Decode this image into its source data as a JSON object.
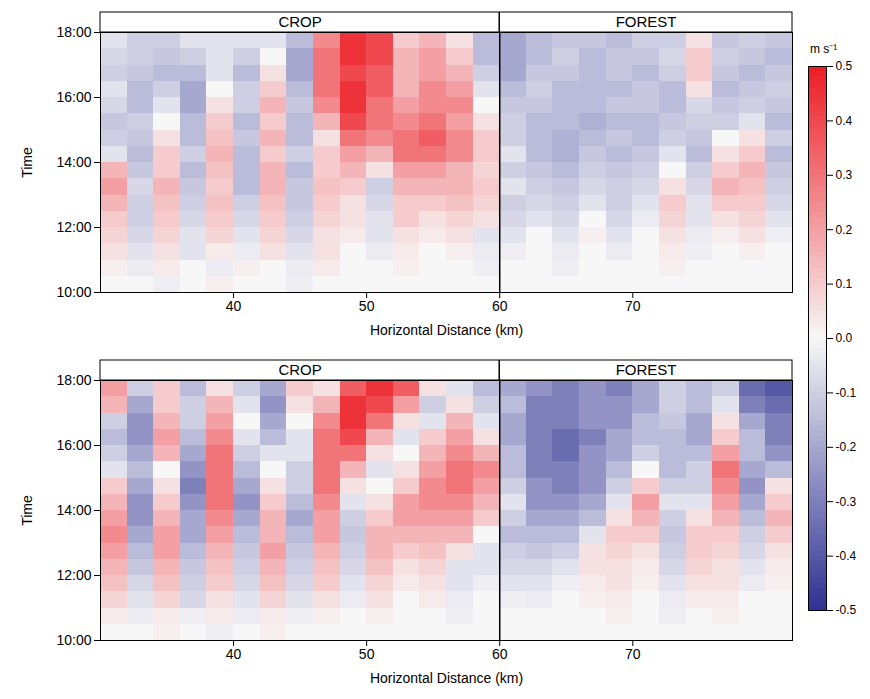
{
  "chart_data": [
    {
      "type": "heatmap",
      "regions": [
        {
          "label": "CROP"
        },
        {
          "label": "FOREST"
        }
      ],
      "boundary": 60,
      "x_label": "Horizontal Distance (km)",
      "y_label": "Time",
      "xlim": [
        30,
        82
      ],
      "xticks": [
        40,
        50,
        60,
        70
      ],
      "ylim": [
        10,
        18
      ],
      "yticks": [
        {
          "value": 10,
          "label": "10:00"
        },
        {
          "value": 12,
          "label": "12:00"
        },
        {
          "value": 14,
          "label": "14:00"
        },
        {
          "value": 16,
          "label": "16:00"
        },
        {
          "value": 18,
          "label": "18:00"
        }
      ],
      "x_edges": [
        30,
        32,
        34,
        36,
        38,
        40,
        42,
        44,
        46,
        48,
        50,
        52,
        54,
        56,
        58,
        60,
        62,
        64,
        66,
        68,
        70,
        72,
        74,
        76,
        78,
        80,
        82
      ],
      "y_edges": [
        10,
        10.5,
        11,
        11.5,
        12,
        12.5,
        13,
        13.5,
        14,
        14.5,
        15,
        15.5,
        16,
        16.5,
        17,
        17.5,
        18
      ],
      "cells": [
        [
          0,
          0,
          -0.02,
          0,
          0.02,
          0,
          0,
          -0.02,
          0,
          0,
          0,
          0,
          0,
          0,
          0,
          0,
          0,
          0,
          0,
          0,
          0,
          0,
          0,
          0,
          0,
          0
        ],
        [
          0.02,
          -0.03,
          0.03,
          0,
          -0.03,
          0.02,
          0,
          -0.03,
          0.03,
          0,
          0,
          0.02,
          0,
          0,
          -0.02,
          0,
          0,
          -0.02,
          0,
          0,
          0,
          0.02,
          0,
          0,
          0,
          0
        ],
        [
          0.05,
          -0.05,
          0.05,
          -0.05,
          0.03,
          -0.03,
          0.05,
          -0.05,
          0.05,
          0,
          -0.03,
          0.03,
          0,
          0.02,
          -0.03,
          -0.02,
          0,
          -0.03,
          0,
          -0.03,
          0,
          0.03,
          -0.02,
          0,
          0.02,
          0
        ],
        [
          0.08,
          -0.08,
          0.08,
          -0.05,
          0.08,
          -0.05,
          0.08,
          -0.08,
          0.05,
          0.03,
          -0.05,
          0.05,
          0.03,
          0.05,
          -0.05,
          -0.05,
          0,
          -0.05,
          0.02,
          -0.05,
          0,
          0.05,
          -0.03,
          0.02,
          0.05,
          -0.02
        ],
        [
          0.1,
          -0.1,
          0.1,
          -0.08,
          0.1,
          -0.08,
          0.1,
          -0.1,
          0.08,
          0.05,
          -0.05,
          0.1,
          0.05,
          0.08,
          0.05,
          -0.08,
          -0.05,
          -0.08,
          0,
          -0.08,
          -0.03,
          0.08,
          -0.05,
          0.05,
          0.08,
          -0.05
        ],
        [
          0.15,
          -0.1,
          0.12,
          -0.1,
          0.12,
          -0.1,
          0.12,
          -0.12,
          0.1,
          0.05,
          -0.08,
          0.1,
          0.1,
          0.12,
          0.08,
          -0.1,
          -0.08,
          -0.1,
          -0.05,
          -0.1,
          -0.05,
          0.1,
          -0.05,
          0.1,
          0.1,
          -0.08
        ],
        [
          0.2,
          -0.08,
          0.15,
          -0.12,
          0.1,
          -0.15,
          0.15,
          -0.12,
          0.12,
          0.1,
          -0.1,
          0.15,
          0.15,
          0.15,
          0.1,
          -0.05,
          -0.1,
          -0.12,
          -0.08,
          -0.1,
          -0.08,
          0.05,
          -0.08,
          0.15,
          0.12,
          -0.1
        ],
        [
          0.15,
          -0.12,
          0.1,
          -0.15,
          0.12,
          -0.15,
          0.15,
          -0.15,
          0.1,
          0.15,
          0.05,
          0.2,
          0.2,
          0.15,
          0.08,
          -0.1,
          -0.12,
          -0.15,
          -0.1,
          -0.12,
          -0.1,
          0,
          -0.1,
          0.1,
          0.15,
          -0.12
        ],
        [
          -0.05,
          -0.15,
          0.1,
          -0.1,
          0.15,
          -0.15,
          0.1,
          -0.1,
          0.1,
          0.2,
          0.15,
          0.3,
          0.3,
          0.25,
          0.1,
          -0.05,
          -0.15,
          -0.18,
          -0.12,
          -0.15,
          -0.12,
          -0.05,
          -0.15,
          0.05,
          0.1,
          -0.15
        ],
        [
          -0.1,
          -0.12,
          0.05,
          -0.15,
          0.12,
          -0.12,
          0.15,
          -0.15,
          0.05,
          0.3,
          0.25,
          0.3,
          0.35,
          0.25,
          0.1,
          -0.1,
          -0.15,
          -0.18,
          -0.15,
          -0.12,
          -0.15,
          -0.1,
          -0.12,
          0,
          0.05,
          -0.1
        ],
        [
          -0.12,
          -0.1,
          0,
          -0.15,
          0.1,
          -0.15,
          0.1,
          -0.15,
          0.15,
          0.4,
          0.3,
          0.25,
          0.3,
          0.2,
          0.05,
          -0.1,
          -0.15,
          -0.15,
          -0.18,
          -0.15,
          -0.15,
          -0.12,
          -0.1,
          -0.1,
          -0.05,
          -0.15
        ],
        [
          -0.08,
          -0.15,
          -0.05,
          -0.2,
          0.05,
          -0.1,
          0.15,
          -0.12,
          0.25,
          0.45,
          0.3,
          0.2,
          0.25,
          0.25,
          0,
          -0.12,
          -0.12,
          -0.15,
          -0.15,
          -0.12,
          -0.12,
          -0.15,
          -0.08,
          -0.12,
          -0.1,
          -0.12
        ],
        [
          -0.05,
          -0.15,
          -0.1,
          -0.2,
          0,
          -0.1,
          0.1,
          -0.15,
          0.3,
          0.45,
          0.35,
          0.15,
          0.25,
          0.2,
          -0.05,
          -0.15,
          -0.1,
          -0.15,
          -0.15,
          -0.15,
          -0.12,
          -0.15,
          0.05,
          -0.15,
          -0.12,
          -0.1
        ],
        [
          -0.1,
          -0.12,
          -0.15,
          -0.15,
          -0.05,
          -0.15,
          0.05,
          -0.2,
          0.3,
          0.4,
          0.35,
          0.15,
          0.2,
          0.15,
          -0.1,
          -0.2,
          -0.12,
          -0.12,
          -0.15,
          -0.12,
          -0.15,
          -0.1,
          0.1,
          -0.12,
          -0.15,
          -0.12
        ],
        [
          -0.08,
          -0.1,
          -0.12,
          -0.1,
          -0.05,
          -0.1,
          0,
          -0.2,
          0.3,
          0.45,
          0.4,
          0.15,
          0.2,
          0.1,
          -0.15,
          -0.2,
          -0.15,
          -0.1,
          -0.15,
          -0.12,
          -0.12,
          -0.08,
          0.1,
          -0.1,
          -0.12,
          -0.15
        ],
        [
          -0.05,
          -0.1,
          -0.1,
          -0.05,
          -0.05,
          -0.05,
          -0.05,
          -0.15,
          0.25,
          0.45,
          0.4,
          0.1,
          0.15,
          0.05,
          -0.15,
          -0.2,
          -0.15,
          -0.12,
          -0.12,
          -0.15,
          -0.1,
          -0.1,
          0.05,
          -0.12,
          -0.1,
          -0.12
        ]
      ]
    },
    {
      "type": "heatmap",
      "regions": [
        {
          "label": "CROP"
        },
        {
          "label": "FOREST"
        }
      ],
      "boundary": 60,
      "x_label": "Horizontal Distance (km)",
      "y_label": "Time",
      "xlim": [
        30,
        82
      ],
      "xticks": [
        40,
        50,
        60,
        70
      ],
      "ylim": [
        10,
        18
      ],
      "yticks": [
        {
          "value": 10,
          "label": "10:00"
        },
        {
          "value": 12,
          "label": "12:00"
        },
        {
          "value": 14,
          "label": "14:00"
        },
        {
          "value": 16,
          "label": "16:00"
        },
        {
          "value": 18,
          "label": "18:00"
        }
      ],
      "x_edges": [
        30,
        32,
        34,
        36,
        38,
        40,
        42,
        44,
        46,
        48,
        50,
        52,
        54,
        56,
        58,
        60,
        62,
        64,
        66,
        68,
        70,
        72,
        74,
        76,
        78,
        80,
        82
      ],
      "y_edges": [
        10,
        10.5,
        11,
        11.5,
        12,
        12.5,
        13,
        13.5,
        14,
        14.5,
        15,
        15.5,
        16,
        16.5,
        17,
        17.5,
        18
      ],
      "cells": [
        [
          0,
          0,
          0.02,
          0,
          -0.02,
          0,
          0.02,
          0,
          0,
          0,
          0,
          0,
          0,
          0,
          0,
          0,
          0,
          0,
          0,
          0,
          0,
          0,
          0,
          0,
          0,
          0
        ],
        [
          0.03,
          -0.03,
          0.03,
          -0.02,
          0.03,
          -0.03,
          0.03,
          -0.02,
          0.02,
          0,
          0.02,
          0,
          0,
          -0.02,
          0,
          0,
          0,
          0,
          0,
          0.02,
          0,
          -0.02,
          0,
          0.02,
          0,
          0
        ],
        [
          0.08,
          -0.05,
          0.08,
          -0.08,
          0.05,
          -0.05,
          0.08,
          -0.05,
          0.05,
          -0.03,
          0.05,
          0,
          0.03,
          -0.03,
          0,
          -0.02,
          -0.03,
          0,
          0.02,
          0.03,
          0,
          -0.03,
          0.03,
          0.03,
          0,
          0
        ],
        [
          0.12,
          -0.08,
          0.12,
          -0.1,
          0.1,
          -0.08,
          0.12,
          -0.08,
          0.1,
          -0.05,
          0.08,
          0.03,
          0.05,
          -0.05,
          -0.02,
          -0.05,
          -0.05,
          -0.02,
          0.03,
          0.05,
          0.02,
          -0.05,
          0.05,
          0.05,
          -0.03,
          0.02
        ],
        [
          0.15,
          -0.12,
          0.15,
          -0.12,
          0.12,
          -0.1,
          0.15,
          -0.1,
          0.12,
          -0.08,
          0.12,
          0.05,
          0.08,
          -0.05,
          -0.05,
          -0.08,
          -0.08,
          -0.05,
          0.05,
          0.05,
          0.03,
          -0.08,
          0.08,
          0.05,
          -0.05,
          0.03
        ],
        [
          0.2,
          -0.15,
          0.2,
          -0.15,
          0.15,
          -0.12,
          0.2,
          -0.12,
          0.15,
          -0.1,
          0.15,
          0.1,
          0.12,
          0.05,
          -0.05,
          -0.1,
          -0.12,
          -0.1,
          0.05,
          0.08,
          0.05,
          -0.1,
          0.1,
          0.08,
          -0.08,
          0.05
        ],
        [
          0.25,
          -0.2,
          0.2,
          -0.2,
          0.2,
          -0.15,
          0.15,
          -0.15,
          0.2,
          -0.12,
          0.15,
          0.15,
          0.15,
          0.15,
          0,
          -0.15,
          -0.15,
          -0.15,
          -0.05,
          0.1,
          0.1,
          -0.12,
          0.1,
          0.1,
          -0.1,
          0.1
        ],
        [
          0.2,
          -0.25,
          0.15,
          -0.2,
          0.25,
          -0.2,
          0.15,
          -0.2,
          0.2,
          -0.1,
          0.1,
          0.2,
          0.2,
          0.2,
          0.1,
          -0.1,
          -0.2,
          -0.2,
          -0.15,
          0.05,
          0.15,
          -0.1,
          0.05,
          0.15,
          -0.15,
          0.15
        ],
        [
          0.15,
          -0.25,
          0.1,
          -0.25,
          0.3,
          -0.25,
          0.1,
          -0.15,
          0.25,
          -0.05,
          0.05,
          0.2,
          0.25,
          0.25,
          0.15,
          -0.05,
          -0.25,
          -0.25,
          -0.2,
          -0.05,
          0.2,
          -0.05,
          -0.05,
          0.2,
          -0.2,
          0.1
        ],
        [
          0.1,
          -0.2,
          0.05,
          -0.3,
          0.3,
          -0.2,
          0.05,
          -0.1,
          0.3,
          0.05,
          0,
          0.1,
          0.25,
          0.3,
          0.2,
          -0.1,
          -0.25,
          -0.3,
          -0.25,
          -0.1,
          0.1,
          -0.1,
          -0.1,
          0.25,
          -0.25,
          0.05
        ],
        [
          -0.05,
          -0.15,
          0,
          -0.25,
          0.3,
          -0.15,
          0,
          -0.1,
          0.3,
          0.15,
          -0.05,
          0.05,
          0.2,
          0.3,
          0.25,
          -0.15,
          -0.3,
          -0.3,
          -0.25,
          -0.15,
          0,
          -0.15,
          -0.1,
          0.3,
          -0.2,
          -0.15
        ],
        [
          -0.1,
          -0.2,
          0.15,
          -0.2,
          0.3,
          -0.1,
          -0.05,
          -0.05,
          0.3,
          0.3,
          0.05,
          0,
          0.15,
          0.25,
          0.15,
          -0.15,
          -0.3,
          -0.35,
          -0.25,
          -0.2,
          -0.1,
          -0.15,
          -0.15,
          0.2,
          -0.15,
          -0.25
        ],
        [
          -0.15,
          -0.25,
          0.2,
          -0.15,
          0.25,
          -0.05,
          -0.15,
          -0.05,
          0.3,
          0.4,
          0.15,
          -0.05,
          0.1,
          0.2,
          0.05,
          -0.2,
          -0.3,
          -0.35,
          -0.3,
          -0.2,
          -0.15,
          -0.15,
          -0.2,
          0.1,
          -0.15,
          -0.3
        ],
        [
          -0.1,
          -0.25,
          0.15,
          -0.1,
          0.2,
          0,
          -0.2,
          0,
          0.25,
          0.45,
          0.3,
          0.05,
          -0.05,
          0.15,
          -0.05,
          -0.2,
          -0.3,
          -0.3,
          -0.25,
          -0.25,
          -0.15,
          -0.12,
          -0.2,
          0.05,
          -0.2,
          -0.3
        ],
        [
          0.15,
          -0.2,
          0.1,
          -0.1,
          0.15,
          -0.05,
          -0.25,
          0.05,
          0.15,
          0.45,
          0.4,
          0.2,
          -0.1,
          0.05,
          -0.1,
          -0.15,
          -0.3,
          -0.3,
          -0.25,
          -0.25,
          -0.2,
          -0.1,
          -0.15,
          -0.05,
          -0.3,
          -0.35
        ],
        [
          0.2,
          -0.1,
          0.1,
          -0.15,
          0.05,
          -0.1,
          -0.2,
          0.1,
          0.05,
          0.35,
          0.45,
          0.35,
          0.05,
          -0.05,
          -0.15,
          -0.2,
          -0.25,
          -0.3,
          -0.25,
          -0.3,
          -0.2,
          -0.1,
          -0.15,
          -0.1,
          -0.35,
          -0.4
        ]
      ]
    }
  ],
  "colorbar": {
    "label": "m s⁻¹",
    "range": [
      -0.5,
      0.5
    ],
    "ticks": [
      0.5,
      0.4,
      0.3,
      0.2,
      0.1,
      {
        "value": 0,
        "label": "0.0"
      },
      -0.1,
      -0.2,
      -0.3,
      -0.4,
      -0.5
    ]
  }
}
